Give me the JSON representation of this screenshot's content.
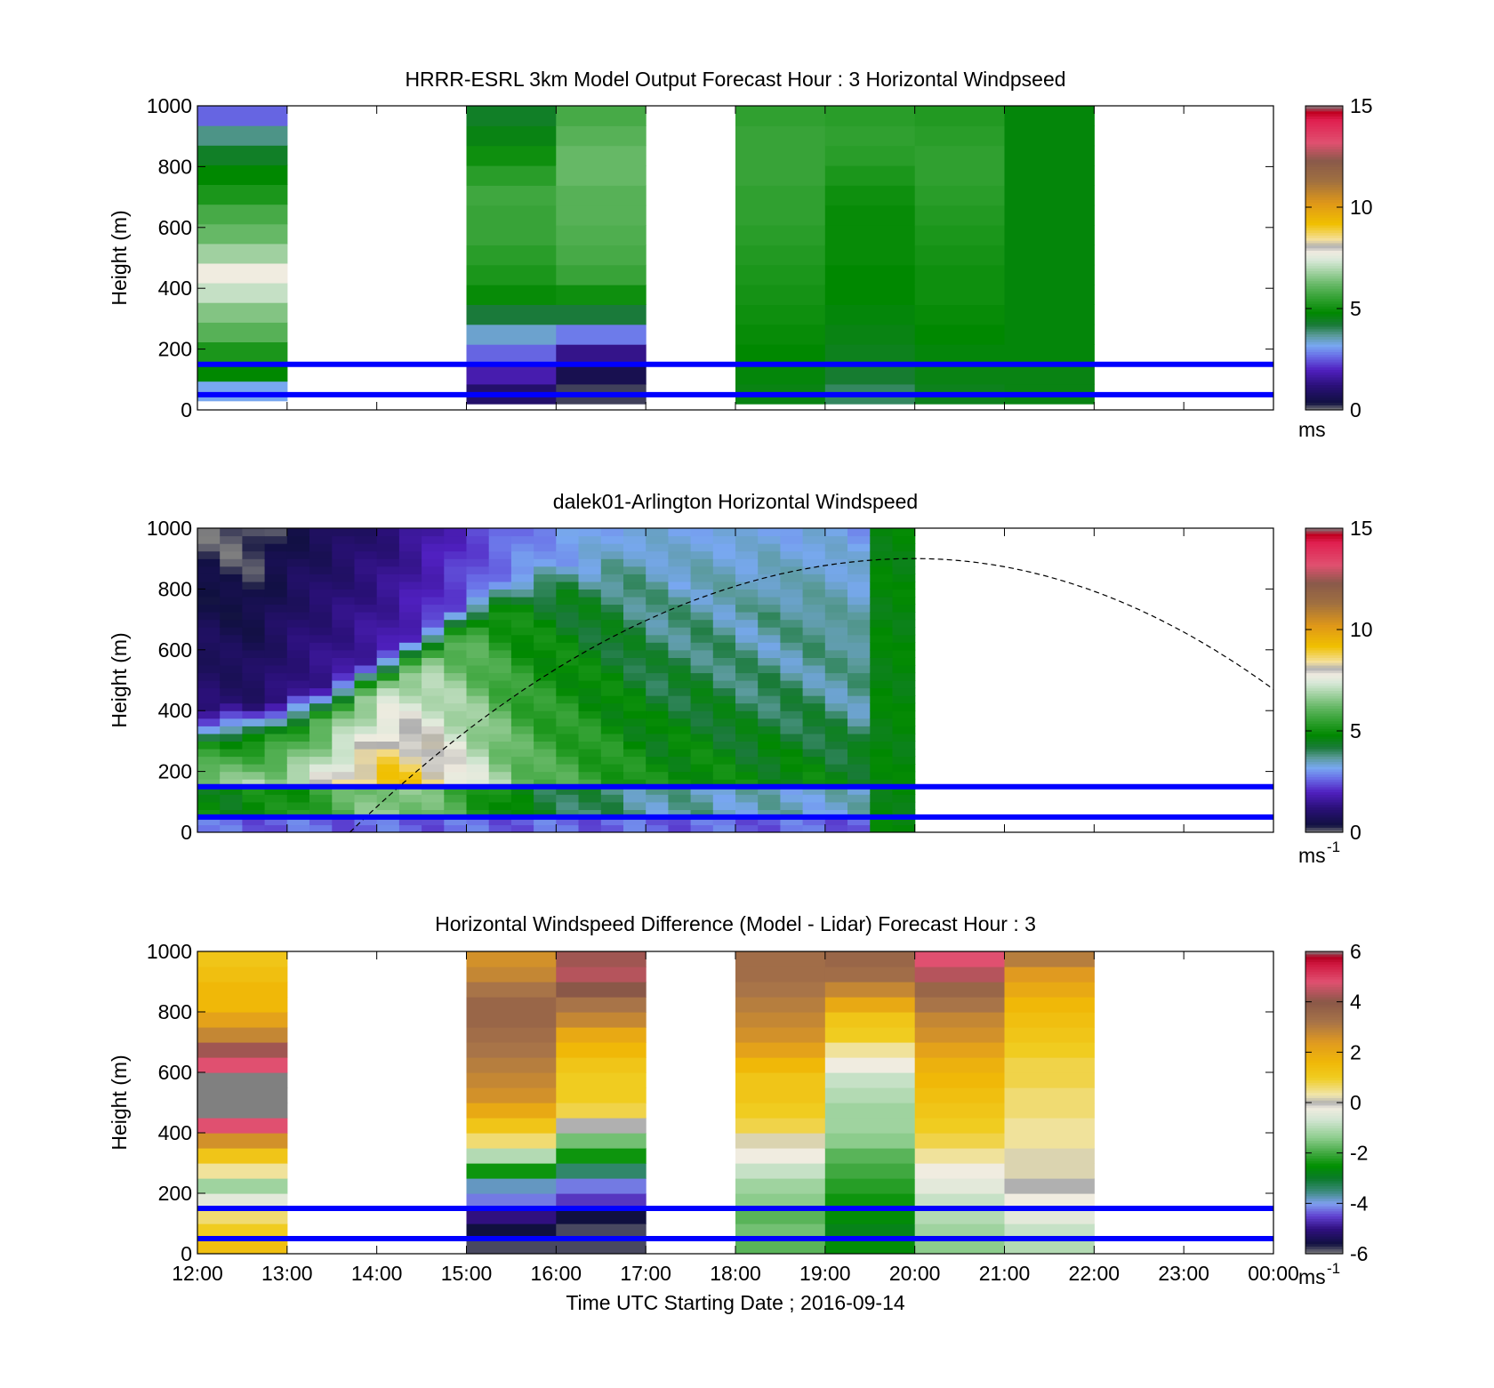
{
  "figure": {
    "xlabel": "Time UTC  Starting Date ; 2016-09-14",
    "ylabel": "Height (m)",
    "x_ticks": [
      "12:00",
      "13:00",
      "14:00",
      "15:00",
      "16:00",
      "17:00",
      "18:00",
      "19:00",
      "20:00",
      "21:00",
      "22:00",
      "23:00",
      "00:00"
    ],
    "y_ticks": [
      "0",
      "200",
      "400",
      "600",
      "800",
      "1000"
    ],
    "reference_lines_m": [
      50,
      150
    ],
    "reference_line_color": "#0000ff"
  },
  "chart_data": [
    {
      "type": "heatmap",
      "title": "HRRR-ESRL 3km Model Output   Forecast Hour : 3 Horizontal Windpseed",
      "xlabel": "",
      "ylabel": "Height (m)",
      "xlim": [
        12,
        24
      ],
      "ylim": [
        0,
        1000
      ],
      "colorbar": {
        "ticks": [
          "0",
          "5",
          "10",
          "15"
        ],
        "range": [
          0,
          15
        ],
        "unit": "ms",
        "unit_sup": ""
      },
      "columns": [
        {
          "start": 12,
          "end": 13,
          "bottom": 30,
          "values": [
            3.2,
            4.8,
            5.2,
            6.0,
            6.5,
            7.2,
            7.8,
            6.8,
            6.2,
            5.8,
            5.2,
            4.8,
            4.4,
            3.8,
            2.6
          ]
        },
        {
          "start": 15,
          "end": 16,
          "bottom": 20,
          "values": [
            1.0,
            1.8,
            2.6,
            3.4,
            4.2,
            4.9,
            5.2,
            5.4,
            5.6,
            5.6,
            5.7,
            5.4,
            5.0,
            4.6,
            4.4
          ]
        },
        {
          "start": 16,
          "end": 17,
          "bottom": 20,
          "values": [
            0.2,
            0.6,
            1.4,
            2.8,
            4.2,
            5.0,
            5.6,
            5.8,
            5.9,
            6.0,
            6.0,
            6.2,
            6.2,
            6.0,
            5.8
          ]
        },
        {
          "start": 18,
          "end": 19,
          "bottom": 20,
          "values": [
            4.6,
            4.7,
            4.8,
            4.9,
            5.0,
            5.1,
            5.2,
            5.3,
            5.4,
            5.5,
            5.5,
            5.6,
            5.6,
            5.6,
            5.5
          ]
        },
        {
          "start": 19,
          "end": 20,
          "bottom": 20,
          "values": [
            4.0,
            4.3,
            4.5,
            4.6,
            4.7,
            4.8,
            4.8,
            4.9,
            4.9,
            4.9,
            5.0,
            5.2,
            5.4,
            5.5,
            5.4
          ]
        },
        {
          "start": 20,
          "end": 21,
          "bottom": 20,
          "values": [
            4.5,
            4.6,
            4.7,
            4.8,
            4.9,
            5.0,
            5.0,
            5.1,
            5.2,
            5.3,
            5.4,
            5.5,
            5.5,
            5.4,
            5.3
          ]
        },
        {
          "start": 21,
          "end": 22,
          "bottom": 20,
          "values": [
            4.6,
            4.6,
            4.7,
            4.7,
            4.7,
            4.7,
            4.7,
            4.7,
            4.7,
            4.7,
            4.7,
            4.7,
            4.7,
            4.7,
            4.7
          ]
        }
      ]
    },
    {
      "type": "heatmap",
      "title": "dalek01-Arlington  Horizontal Windspeed",
      "xlabel": "",
      "ylabel": "Height (m)",
      "xlim": [
        12,
        24
      ],
      "ylim": [
        0,
        1000
      ],
      "colorbar": {
        "ticks": [
          "0",
          "5",
          "10",
          "15"
        ],
        "range": [
          0,
          15
        ],
        "unit": "ms",
        "unit_sup": "-1"
      },
      "x_step_hours": 0.25,
      "y_levels_m": [
        0,
        100,
        200,
        300,
        400,
        500,
        600,
        700,
        800,
        900,
        1000
      ],
      "profile_top_m": [
        410,
        420,
        420,
        440,
        460,
        480,
        520,
        560,
        600,
        640,
        690,
        740,
        790,
        830,
        860,
        880,
        900,
        890,
        900,
        880,
        850,
        820,
        800,
        780,
        750,
        730,
        700,
        660,
        620,
        560,
        0,
        0
      ],
      "peak_speed": [
        6.6,
        6.6,
        6.8,
        6.8,
        7.2,
        7.8,
        8.3,
        8.8,
        9.2,
        9.0,
        8.6,
        8.0,
        7.4,
        6.8,
        6.3,
        6.0,
        5.8,
        5.6,
        5.4,
        5.2,
        5.0,
        5.0,
        5.0,
        4.9,
        4.8,
        4.8,
        4.8,
        4.8,
        4.7,
        4.7,
        4.7,
        4.7
      ],
      "upper_speed": [
        1.1,
        1.0,
        1.0,
        1.2,
        1.4,
        1.5,
        1.6,
        1.7,
        1.8,
        2.0,
        2.2,
        2.4,
        2.6,
        2.8,
        3.0,
        3.1,
        3.2,
        3.3,
        3.4,
        3.5,
        3.5,
        3.5,
        3.6,
        3.6,
        3.6,
        3.7,
        3.7,
        3.8,
        3.8,
        3.8,
        4.7,
        4.7
      ],
      "boundary_layer_curve": {
        "x_start": 13.7,
        "x_peak": 20.0,
        "peak_m": 900,
        "x_end": 24.0,
        "end_m": 470
      }
    },
    {
      "type": "heatmap",
      "title": "Horizontal Windspeed Difference (Model - Lidar) Forecast Hour : 3",
      "xlabel": "Time UTC  Starting Date ; 2016-09-14",
      "ylabel": "Height (m)",
      "xlim": [
        12,
        24
      ],
      "ylim": [
        0,
        1000
      ],
      "colorbar": {
        "ticks": [
          "-6",
          "-4",
          "-2",
          "0",
          "2",
          "4",
          "6"
        ],
        "range": [
          -6,
          6
        ],
        "unit": "ms",
        "unit_sup": "-1"
      },
      "columns": [
        {
          "start": 12,
          "end": 13,
          "bottom": 0,
          "values": [
            1.4,
            1.0,
            0.6,
            -0.4,
            -1.2,
            0.4,
            1.2,
            2.6,
            4.8,
            6.0,
            6.0,
            6.0,
            4.8,
            4.2,
            2.8,
            2.2,
            1.6,
            1.6,
            1.4,
            1.2
          ]
        },
        {
          "start": 15,
          "end": 16,
          "bottom": 0,
          "values": [
            -5.8,
            -5.6,
            -5.0,
            -4.2,
            -3.8,
            -2.4,
            -1.0,
            0.6,
            1.2,
            2.0,
            2.6,
            2.8,
            3.0,
            3.2,
            3.4,
            3.6,
            3.6,
            3.2,
            2.8,
            2.6
          ]
        },
        {
          "start": 16,
          "end": 17,
          "bottom": 0,
          "values": [
            -5.8,
            -5.8,
            -5.6,
            -4.6,
            -4.2,
            -3.4,
            -2.4,
            -1.6,
            0.0,
            0.8,
            1.0,
            1.0,
            1.2,
            1.6,
            2.0,
            2.8,
            3.2,
            4.0,
            4.4,
            4.2
          ]
        },
        {
          "start": 18,
          "end": 19,
          "bottom": 0,
          "values": [
            -1.8,
            -1.6,
            -1.8,
            -1.4,
            -1.2,
            -0.8,
            -0.2,
            0.2,
            0.8,
            1.0,
            1.2,
            1.2,
            1.6,
            2.2,
            2.6,
            2.8,
            3.0,
            3.2,
            3.4,
            3.4
          ]
        },
        {
          "start": 19,
          "end": 20,
          "bottom": 0,
          "values": [
            -2.6,
            -2.8,
            -2.6,
            -2.4,
            -2.2,
            -2.0,
            -1.8,
            -1.4,
            -1.2,
            -1.2,
            -1.0,
            -0.8,
            -0.2,
            0.4,
            1.0,
            1.2,
            2.0,
            2.8,
            3.4,
            3.6
          ]
        },
        {
          "start": 20,
          "end": 21,
          "bottom": 0,
          "values": [
            -1.4,
            -1.2,
            -1.0,
            -0.8,
            -0.4,
            -0.2,
            0.4,
            0.8,
            1.0,
            1.2,
            1.4,
            1.6,
            1.8,
            2.2,
            2.6,
            2.8,
            3.2,
            3.6,
            4.4,
            4.8
          ]
        },
        {
          "start": 21,
          "end": 22,
          "bottom": 0,
          "values": [
            -1.0,
            -0.8,
            -0.4,
            -0.2,
            0.0,
            0.2,
            0.2,
            0.4,
            0.4,
            0.6,
            0.6,
            0.8,
            0.8,
            1.0,
            1.2,
            1.4,
            1.6,
            2.0,
            2.4,
            3.0
          ]
        }
      ]
    }
  ]
}
